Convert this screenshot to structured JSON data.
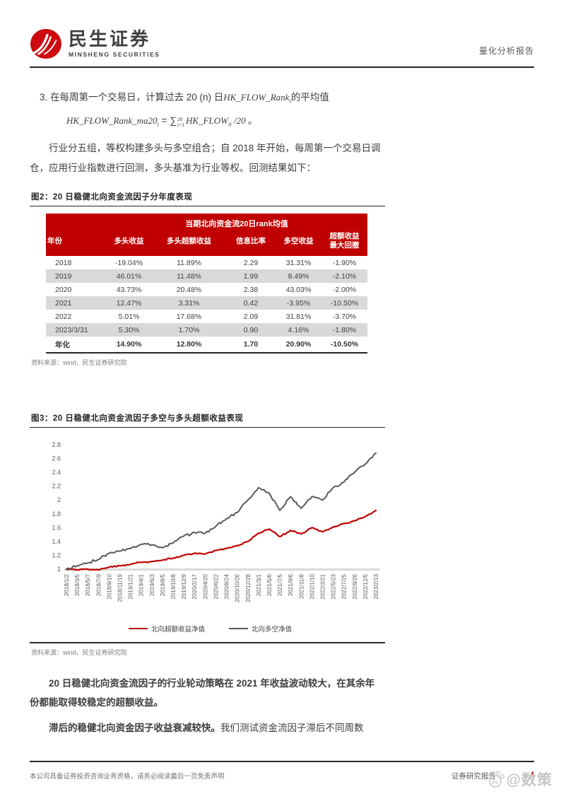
{
  "header": {
    "brand_cn": "民生证券",
    "brand_en": "MINSHENG SECURITIES",
    "report_type": "量化分析报告"
  },
  "body": {
    "item3": {
      "prefix": "3. 在每周第一个交易日，计算过去 20 (n) 日",
      "var_base": "HK_FLOW_Rank",
      "var_sub": "i",
      "suffix": "的平均值"
    },
    "formula": {
      "lhs_base": "HK_FLOW_Rank_ma20",
      "lhs_sub": "i",
      "equals": " = ",
      "sum_symbol": "∑",
      "sum_sup": "20",
      "sum_sub": "t=1",
      "rhs_base": "HK_FLOW",
      "rhs_sub": "it",
      "rhs_tail": " /20 ",
      "period": "。"
    },
    "para1": "行业分五组，等权构建多头与多空组合；自 2018 年开始，每周第一个交易日调仓，应用行业指数进行回测，多头基准为行业等权。回测结果如下：",
    "para2_bold": "20 日稳健北向资金流因子的行业轮动策略在 2021 年收益波动较大，在其余年份都能取得较稳定的超额收益。",
    "para3_bold": "滞后的稳健北向资金因子收益衰减较快。",
    "para3_normal": "我们测试资金流因子滞后不同周数"
  },
  "figure2": {
    "caption": "图2：20 日稳健北向资金流因子分年度表现",
    "group_header": "当期北向资金流20日rank均值",
    "columns": [
      "年份",
      "多头收益",
      "多头超额收益",
      "信息比率",
      "多空收益",
      "超额收益\n最大回撤"
    ],
    "rows": [
      [
        "2018",
        "-19.04%",
        "11.89%",
        "2.29",
        "31.31%",
        "-1.90%"
      ],
      [
        "2019",
        "46.01%",
        "11.48%",
        "1.99",
        "8.49%",
        "-2.10%"
      ],
      [
        "2020",
        "43.73%",
        "20.48%",
        "2.38",
        "43.03%",
        "-2.00%"
      ],
      [
        "2021",
        "12.47%",
        "3.31%",
        "0.42",
        "-3.95%",
        "-10.50%"
      ],
      [
        "2022",
        "5.01%",
        "17.68%",
        "2.09",
        "31.81%",
        "-3.70%"
      ],
      [
        "2023/3/31",
        "5.30%",
        "1.70%",
        "0.90",
        "4.16%",
        "-1.80%"
      ],
      [
        "年化",
        "14.90%",
        "12.80%",
        "1.70",
        "20.90%",
        "-10.50%"
      ]
    ],
    "source": "资料来源：wind，民生证券研究院"
  },
  "chart_data": {
    "type": "line",
    "title": "图3：20 日稳健北向资金流因子多空与多头超额收益表现",
    "x": [
      "2018/1/2",
      "2018/3/5",
      "2018/5/7",
      "2018/7/9",
      "2018/9/10",
      "2018/11/19",
      "2019/1/21",
      "2019/4/1",
      "2019/6/3",
      "2019/8/5",
      "2019/10/8",
      "2019/12/9",
      "2020/2/17",
      "2020/4/20",
      "2020/6/22",
      "2020/8/24",
      "2020/10/26",
      "2020/12/28",
      "2021/3/1",
      "2021/5/6",
      "2021/7/5",
      "2021/9/6",
      "2021/11/8",
      "2022/1/10",
      "2022/3/21",
      "2022/5/23",
      "2022/7/25",
      "2022/9/26",
      "2022/12/5",
      "2023/2/13"
    ],
    "series": [
      {
        "name": "北向超额收益净值",
        "color": "#c00000",
        "values": [
          1.0,
          0.99,
          1.0,
          0.99,
          1.03,
          1.05,
          1.07,
          1.1,
          1.11,
          1.13,
          1.16,
          1.2,
          1.23,
          1.22,
          1.27,
          1.3,
          1.34,
          1.4,
          1.52,
          1.58,
          1.47,
          1.56,
          1.51,
          1.6,
          1.54,
          1.61,
          1.66,
          1.7,
          1.76,
          1.85
        ]
      },
      {
        "name": "北向多空净值",
        "color": "#595959",
        "values": [
          1.0,
          1.05,
          1.09,
          1.14,
          1.23,
          1.26,
          1.3,
          1.36,
          1.35,
          1.31,
          1.38,
          1.48,
          1.53,
          1.52,
          1.62,
          1.73,
          1.82,
          2.0,
          2.18,
          2.1,
          1.85,
          2.05,
          1.88,
          2.05,
          2.0,
          2.18,
          2.26,
          2.4,
          2.52,
          2.68
        ]
      }
    ],
    "ylim": [
      1,
      2.8
    ],
    "yticks": [
      1,
      1.2,
      1.4,
      1.6,
      1.8,
      2,
      2.2,
      2.4,
      2.6,
      2.8
    ],
    "grid": false,
    "legend_position": "bottom",
    "source": "资料来源：wind，民生证券研究院"
  },
  "footer": {
    "disclaimer": "本公司具备证券投资咨询业务资格，请务必阅读最后一页免责声明",
    "report_label": "证券研究报告",
    "page_number": "4",
    "watermark": "@数策"
  }
}
